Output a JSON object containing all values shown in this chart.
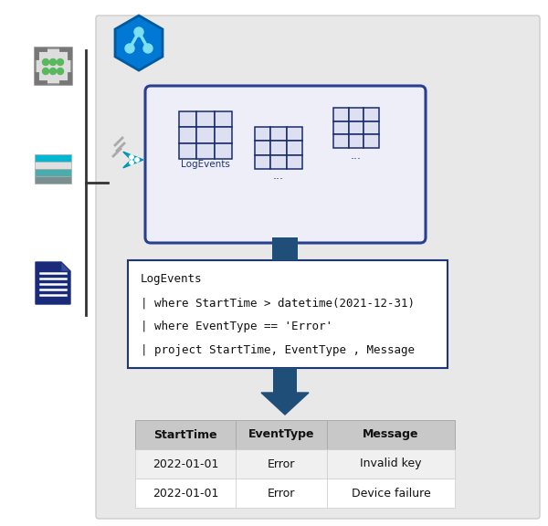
{
  "bg_color": "#e8e8e8",
  "white": "#ffffff",
  "navy": "#1f3673",
  "arrow_color": "#1f4e79",
  "kql_lines": [
    "LogEvents",
    "| where StartTime > datetime(2021-12-31)",
    "| where EventType == 'Error'",
    "| project StartTime, EventType , Message"
  ],
  "table_headers": [
    "StartTime",
    "EventType",
    "Message"
  ],
  "table_data": [
    [
      "2022-01-01",
      "Error",
      "Invalid key"
    ],
    [
      "2022-01-01",
      "Error",
      "Device failure"
    ]
  ],
  "logevents_label": "LogEvents",
  "ellipsis": "...",
  "gray_bg": "#e8e8e8",
  "gray_border": "#cccccc",
  "table_header_bg": "#c8c8c8",
  "table_row_bg": [
    "#f0f0f0",
    "#ffffff"
  ],
  "kql_box_bg": "#ffffff",
  "db_box_bg": "#eeeef8",
  "db_box_border": "#2a3f8f",
  "green_dot": "#5ab85c",
  "teal": "#00b4c8",
  "azure_blue": "#0078d4",
  "dark_navy": "#1a2b7a",
  "mid_gray": "#999999",
  "cell_bg": "#dde0f0",
  "cell_border": "#1a2b6b"
}
